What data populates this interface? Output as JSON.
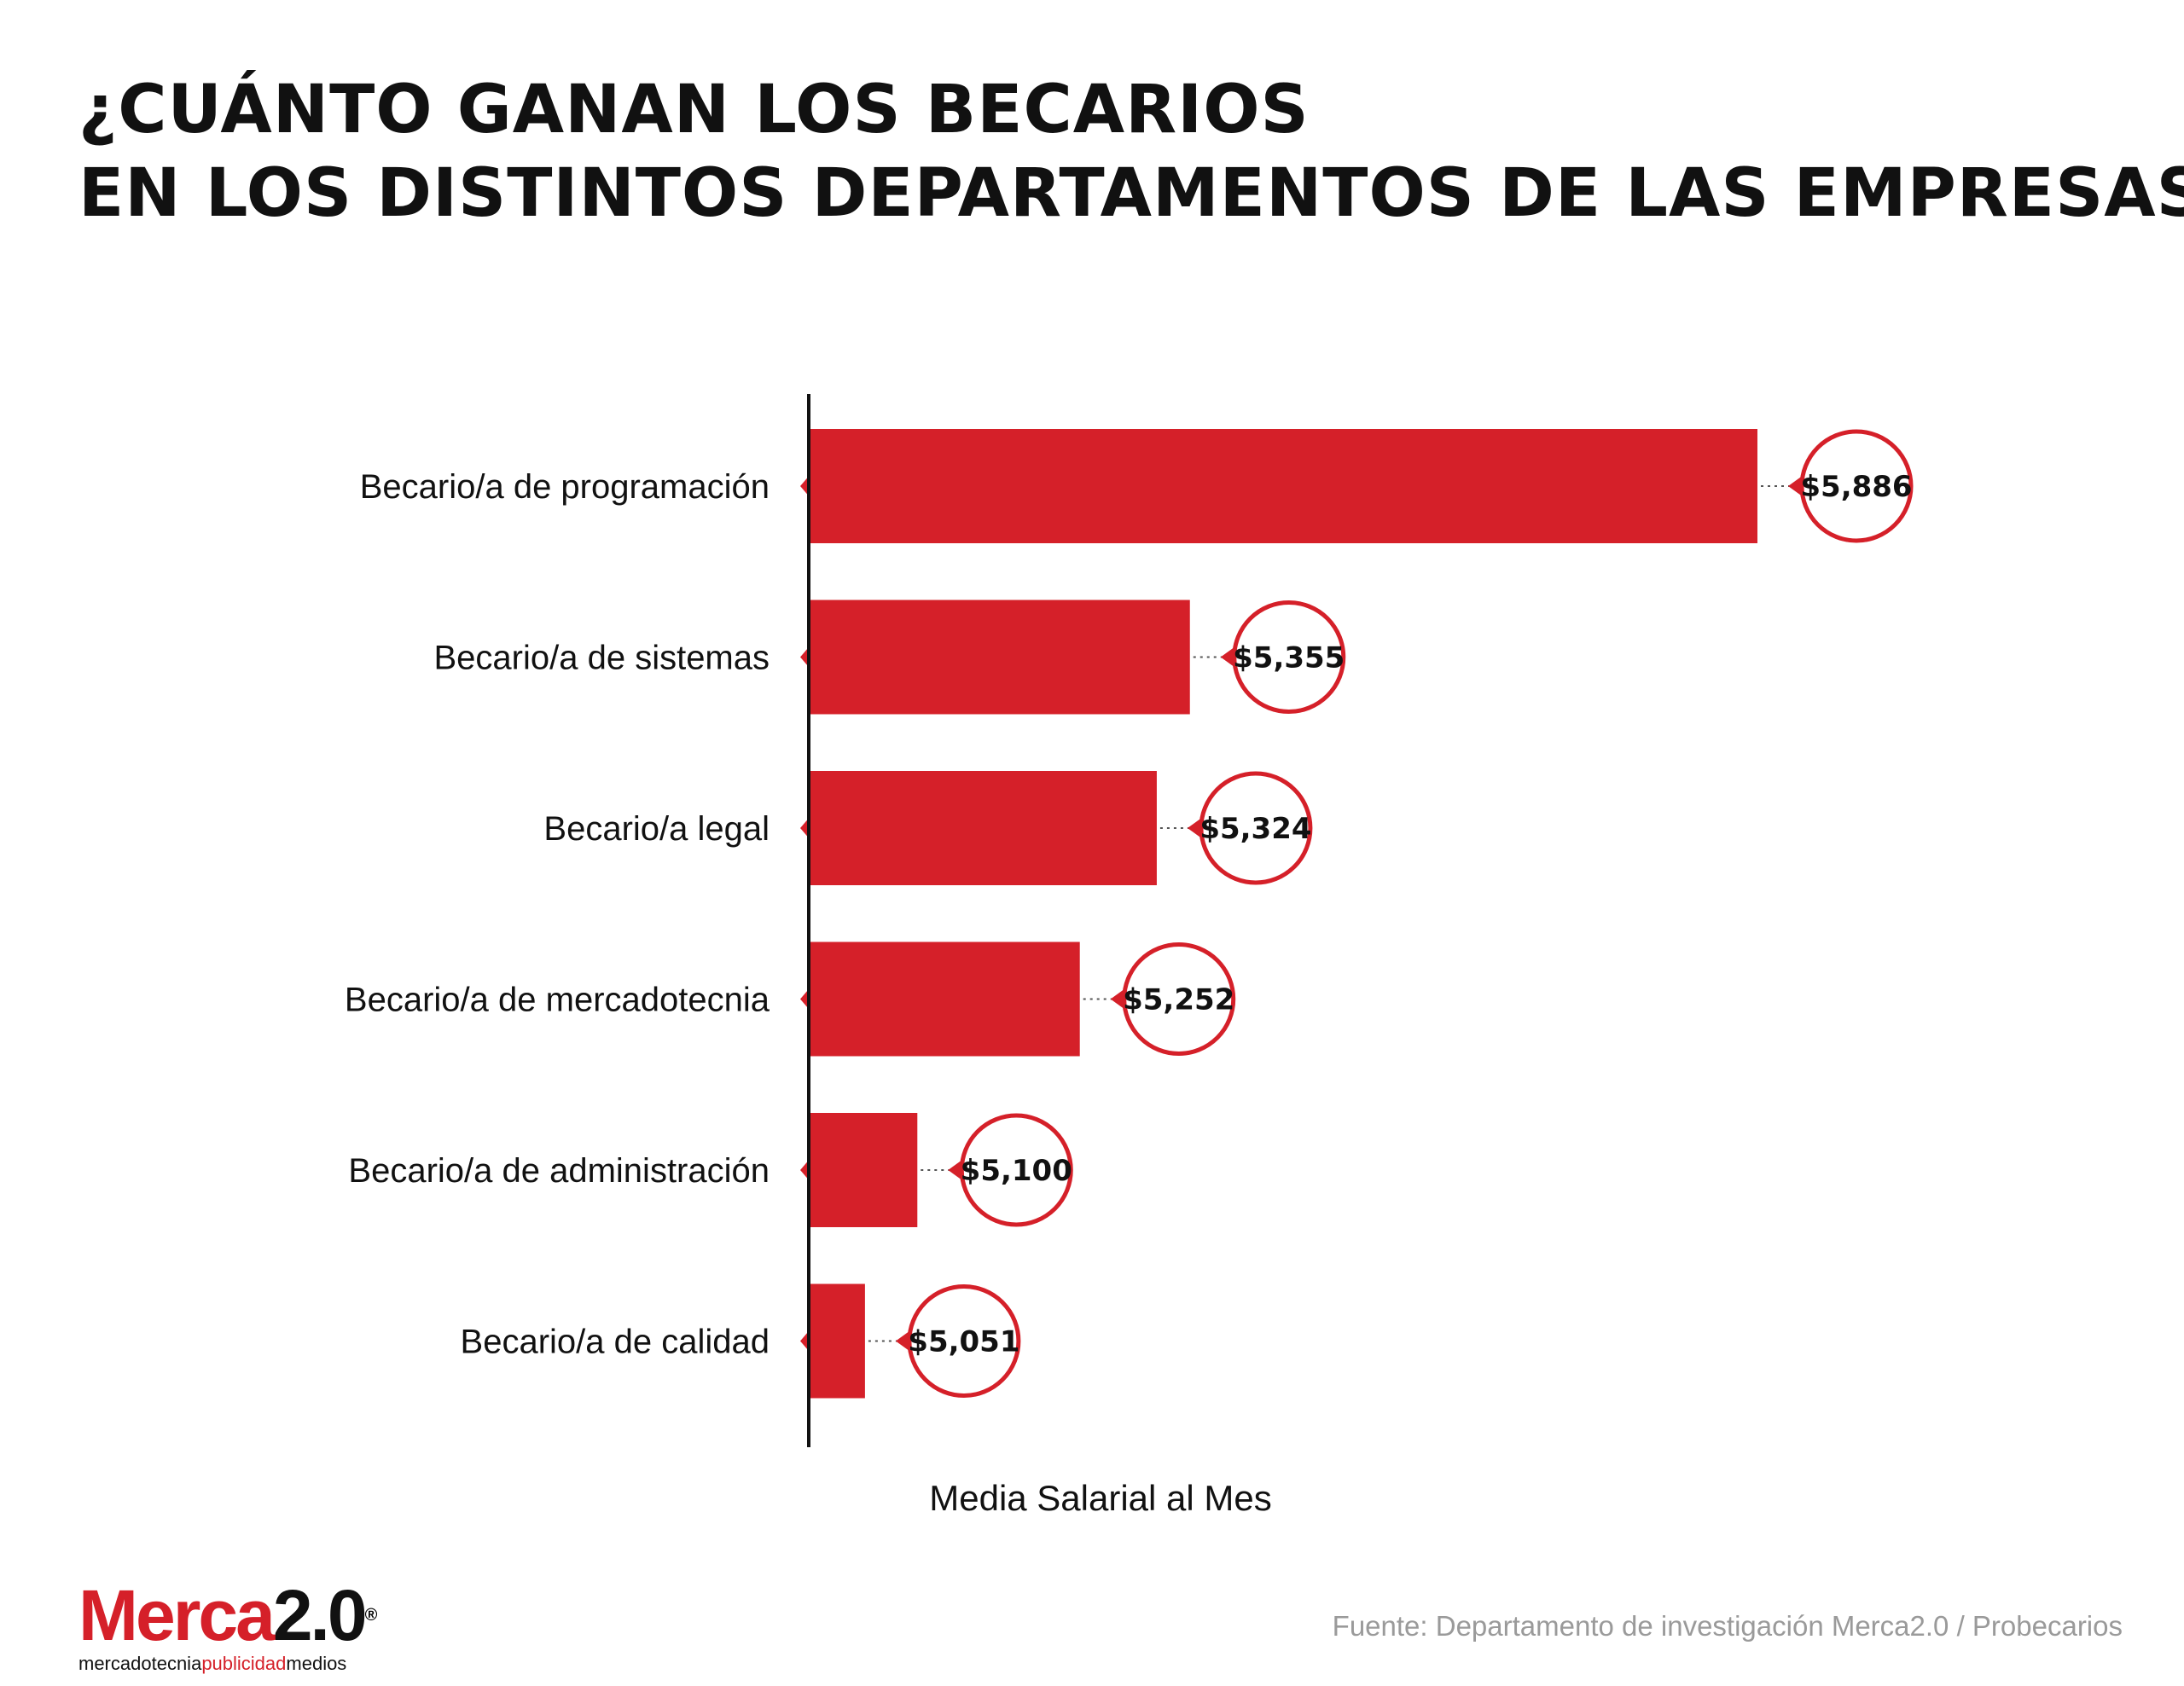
{
  "title": {
    "line1": "¿CUÁNTO GANAN LOS BECARIOS",
    "line2": "EN LOS DISTINTOS DEPARTAMENTOS DE LAS EMPRESAS?"
  },
  "chart_data": {
    "type": "bar",
    "orientation": "horizontal",
    "categories": [
      "Becario/a de programación",
      "Becario/a de sistemas",
      "Becario/a legal",
      "Becario/a de mercadotecnia",
      "Becario/a de administración",
      "Becario/a de calidad"
    ],
    "values": [
      5886,
      5355,
      5324,
      5252,
      5100,
      5051
    ],
    "value_labels": [
      "$5,886",
      "$5,355",
      "$5,324",
      "$5,252",
      "$5,100",
      "$5,051"
    ],
    "xlabel": "Media Salarial al Mes",
    "xlim": [
      5000,
      5886
    ],
    "grid": false,
    "bar_color": "#d52029"
  },
  "logo": {
    "main_red": "Merca",
    "main_black": "2.0",
    "reg_mark": "®",
    "sub_black1": "mercadotecnia",
    "sub_red": "publicidad",
    "sub_black2": "medios"
  },
  "source": "Fuente: Departamento de investigación Merca2.0 / Probecarios"
}
